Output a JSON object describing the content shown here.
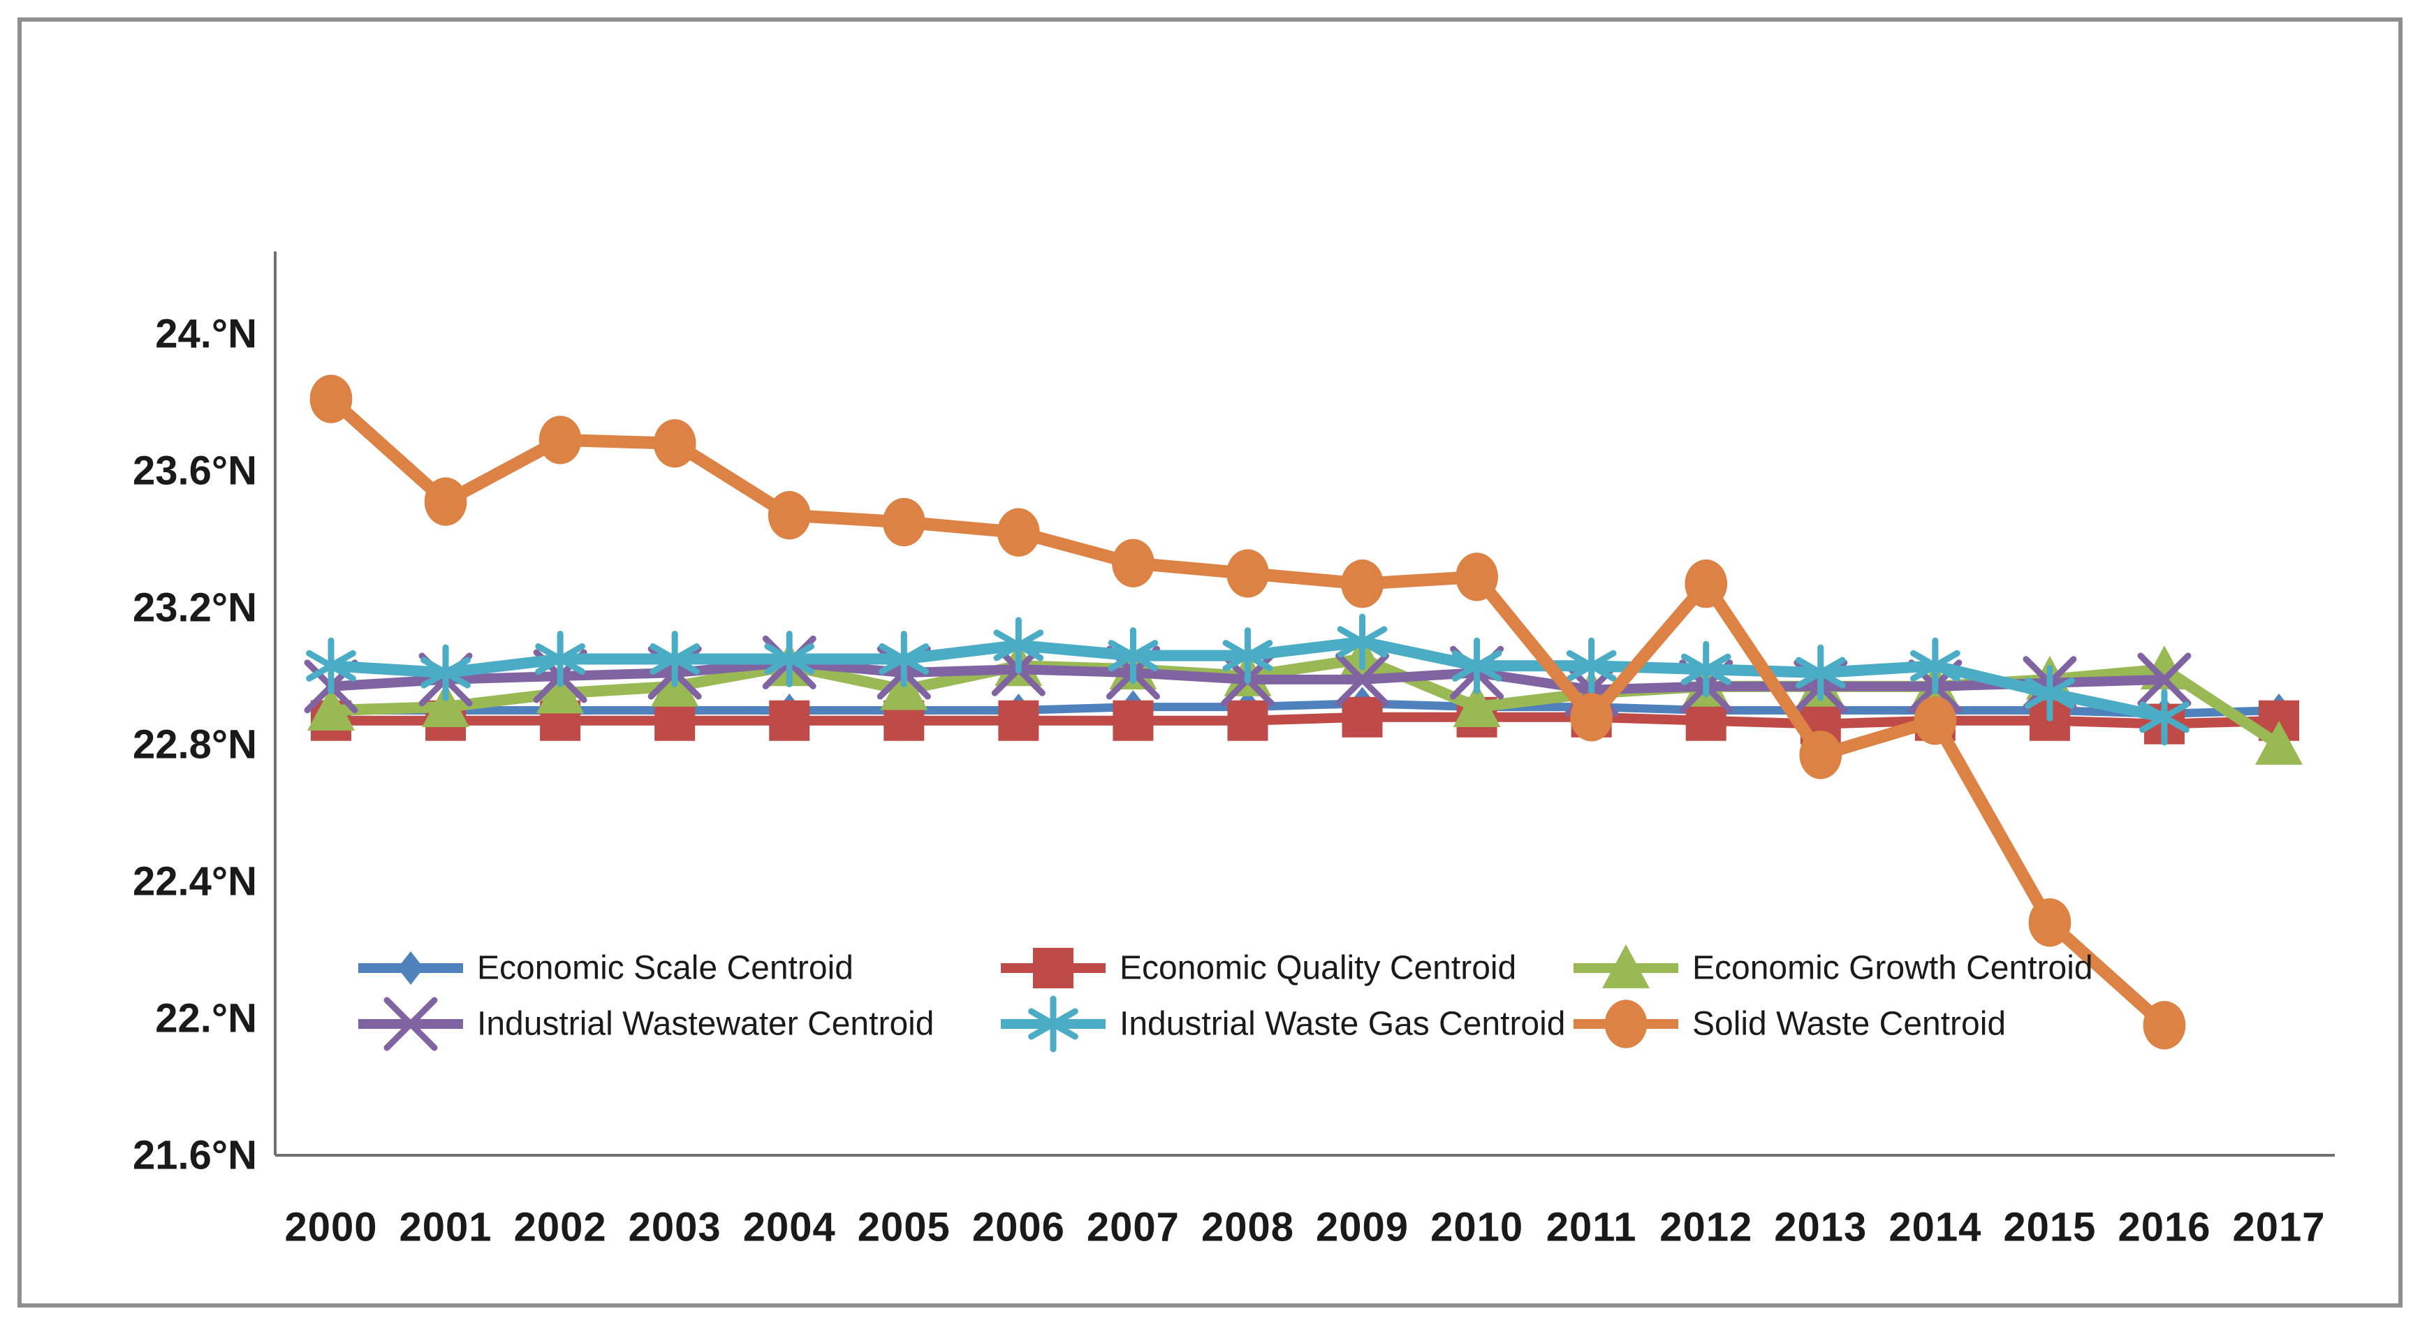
{
  "chart_data": {
    "type": "line",
    "title": "",
    "xlabel": "",
    "ylabel": "",
    "x_categories": [
      "2000",
      "2001",
      "2002",
      "2003",
      "2004",
      "2005",
      "2006",
      "2007",
      "2008",
      "2009",
      "2010",
      "2011",
      "2012",
      "2013",
      "2014",
      "2015",
      "2016",
      "2017"
    ],
    "y_ticks": [
      {
        "label": "24.°N",
        "value": 24.0
      },
      {
        "label": "23.6°N",
        "value": 23.6
      },
      {
        "label": "23.2°N",
        "value": 23.2
      },
      {
        "label": "22.8°N",
        "value": 22.8
      },
      {
        "label": "22.4°N",
        "value": 22.4
      },
      {
        "label": "22.°N",
        "value": 22.0
      },
      {
        "label": "21.6°N",
        "value": 21.6
      }
    ],
    "ylim": [
      21.6,
      24.0
    ],
    "grid": false,
    "legend_position": "inside-lower-left, 2 rows x 3 columns",
    "series": [
      {
        "name": "Economic Scale Centroid",
        "color": "#4F81BD",
        "marker": "diamond",
        "values": [
          22.9,
          22.9,
          22.9,
          22.9,
          22.9,
          22.9,
          22.9,
          22.91,
          22.91,
          22.92,
          22.91,
          22.91,
          22.9,
          22.9,
          22.9,
          22.9,
          22.89,
          22.9
        ]
      },
      {
        "name": "Economic Quality Centroid",
        "color": "#BE4B48",
        "marker": "square",
        "values": [
          22.87,
          22.87,
          22.87,
          22.87,
          22.87,
          22.87,
          22.87,
          22.87,
          22.87,
          22.88,
          22.88,
          22.88,
          22.87,
          22.86,
          22.87,
          22.87,
          22.86,
          22.87
        ]
      },
      {
        "name": "Economic Growth Centroid",
        "color": "#98B954",
        "marker": "triangle",
        "values": [
          22.9,
          22.91,
          22.95,
          22.97,
          23.03,
          22.96,
          23.03,
          23.02,
          23.0,
          23.05,
          22.91,
          22.95,
          22.97,
          22.97,
          22.97,
          22.99,
          23.02,
          22.8
        ]
      },
      {
        "name": "Industrial Wastewater Centroid",
        "color": "#8064A2",
        "marker": "x",
        "values": [
          22.97,
          22.99,
          23.0,
          23.01,
          23.04,
          23.01,
          23.02,
          23.01,
          22.99,
          22.99,
          23.01,
          22.96,
          22.97,
          22.97,
          22.97,
          22.98,
          22.99,
          null
        ]
      },
      {
        "name": "Industrial Waste Gas Centroid",
        "color": "#4BACC6",
        "marker": "asterisk",
        "values": [
          23.03,
          23.01,
          23.05,
          23.05,
          23.05,
          23.05,
          23.09,
          23.06,
          23.06,
          23.1,
          23.03,
          23.03,
          23.02,
          23.01,
          23.03,
          22.95,
          22.88,
          null
        ]
      },
      {
        "name": "Solid Waste Centroid",
        "color": "#DC8244",
        "marker": "circle",
        "values": [
          23.81,
          23.51,
          23.69,
          23.68,
          23.47,
          23.45,
          23.42,
          23.33,
          23.3,
          23.27,
          23.29,
          22.88,
          23.27,
          22.77,
          22.87,
          22.28,
          21.98,
          null
        ]
      }
    ],
    "colors": {
      "axis": "#6f6f6f",
      "outer_border": "#8f8f8f",
      "text": "#1a1a1a",
      "background": "#ffffff"
    }
  }
}
